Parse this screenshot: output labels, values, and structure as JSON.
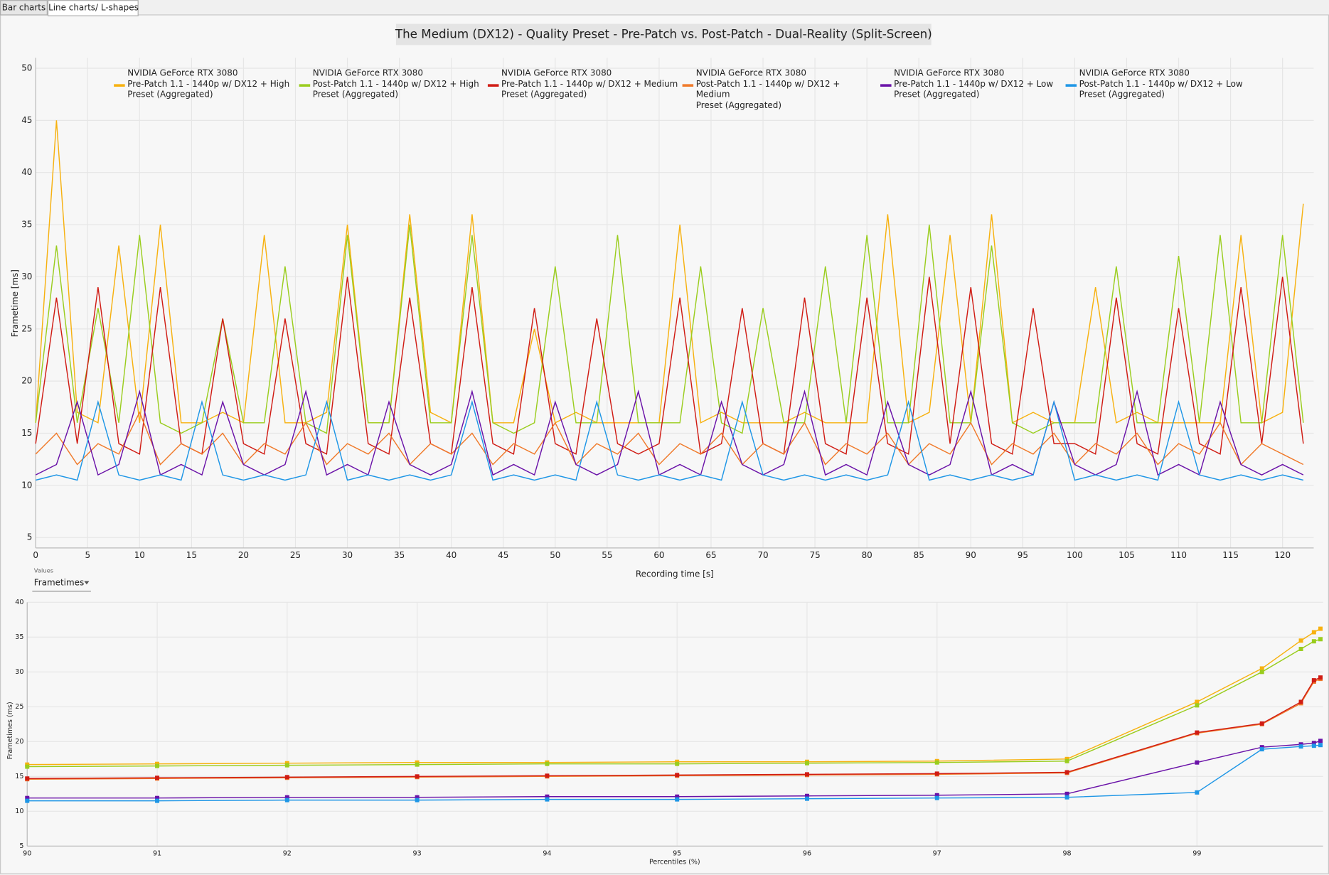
{
  "tabs": [
    "Bar charts",
    "Line charts/ L-shapes"
  ],
  "controls": {
    "label": "Values",
    "selected": "Frametimes"
  },
  "chart_data": [
    {
      "type": "line",
      "title": "The Medium (DX12) - Quality Preset - Pre-Patch vs. Post-Patch - Dual-Reality (Split-Screen)",
      "y_label": "Frametime [ms]",
      "x_label": "Recording time [s]",
      "grid": true,
      "legend": "top",
      "xlim": [
        0,
        123
      ],
      "ylim": [
        4,
        51
      ],
      "xticks": [
        0,
        5,
        10,
        15,
        20,
        25,
        30,
        35,
        40,
        45,
        50,
        55,
        60,
        65,
        70,
        75,
        80,
        85,
        90,
        95,
        100,
        105,
        110,
        115,
        120
      ],
      "yticks": [
        5,
        10,
        15,
        20,
        25,
        30,
        35,
        40,
        45,
        50
      ],
      "x": [
        0,
        2,
        4,
        6,
        8,
        10,
        12,
        14,
        16,
        18,
        20,
        22,
        24,
        26,
        28,
        30,
        32,
        34,
        36,
        38,
        40,
        42,
        44,
        46,
        48,
        50,
        52,
        54,
        56,
        58,
        60,
        62,
        64,
        66,
        68,
        70,
        72,
        74,
        76,
        78,
        80,
        82,
        84,
        86,
        88,
        90,
        92,
        94,
        96,
        98,
        100,
        102,
        104,
        106,
        108,
        110,
        112,
        114,
        116,
        118,
        120,
        122
      ],
      "series": [
        {
          "name": "NVIDIA GeForce RTX 3080\nPre-Patch 1.1 - 1440p w/ DX12 + High\nPreset (Aggregated)",
          "color": "#f7b10f",
          "values": [
            16,
            45,
            17,
            16,
            33,
            16,
            35,
            16,
            16,
            17,
            16,
            34,
            16,
            16,
            17,
            35,
            16,
            16,
            36,
            17,
            16,
            36,
            16,
            16,
            25,
            16,
            17,
            16,
            16,
            16,
            16,
            35,
            16,
            17,
            16,
            16,
            16,
            17,
            16,
            16,
            16,
            36,
            16,
            17,
            34,
            16,
            36,
            16,
            17,
            16,
            16,
            29,
            16,
            17,
            16,
            16,
            16,
            16,
            34,
            16,
            17,
            37
          ]
        },
        {
          "name": "NVIDIA GeForce RTX 3080\nPost-Patch 1.1 - 1440p w/ DX12 + High\nPreset (Aggregated)",
          "color": "#9acd1e",
          "values": [
            16,
            33,
            16,
            27,
            16,
            34,
            16,
            15,
            16,
            26,
            16,
            16,
            31,
            16,
            15,
            34,
            16,
            16,
            35,
            16,
            16,
            34,
            16,
            15,
            16,
            31,
            16,
            16,
            34,
            16,
            16,
            16,
            31,
            16,
            15,
            27,
            16,
            16,
            31,
            16,
            34,
            16,
            16,
            35,
            16,
            16,
            33,
            16,
            15,
            16,
            16,
            16,
            31,
            16,
            16,
            32,
            16,
            34,
            16,
            16,
            34,
            16
          ]
        },
        {
          "name": "NVIDIA GeForce RTX 3080\nPre-Patch 1.1 - 1440p w/ DX12 + Medium\nPreset (Aggregated)",
          "color": "#d01c14",
          "values": [
            14,
            28,
            14,
            29,
            14,
            13,
            29,
            14,
            13,
            26,
            14,
            13,
            26,
            14,
            13,
            30,
            14,
            13,
            28,
            14,
            13,
            29,
            14,
            13,
            27,
            14,
            13,
            26,
            14,
            13,
            14,
            28,
            13,
            14,
            27,
            14,
            13,
            28,
            14,
            13,
            28,
            14,
            13,
            30,
            14,
            29,
            14,
            13,
            27,
            14,
            14,
            13,
            28,
            14,
            13,
            27,
            14,
            13,
            29,
            14,
            30,
            14
          ]
        },
        {
          "name": "NVIDIA GeForce RTX 3080\nPost-Patch 1.1 - 1440p w/ DX12 + Medium\nPreset (Aggregated)",
          "color": "#f07a2a",
          "values": [
            13,
            15,
            12,
            14,
            13,
            17,
            12,
            14,
            13,
            15,
            12,
            14,
            13,
            16,
            12,
            14,
            13,
            15,
            12,
            14,
            13,
            15,
            12,
            14,
            13,
            16,
            12,
            14,
            13,
            15,
            12,
            14,
            13,
            15,
            12,
            14,
            13,
            16,
            12,
            14,
            13,
            15,
            12,
            14,
            13,
            16,
            12,
            14,
            13,
            15,
            12,
            14,
            13,
            15,
            12,
            14,
            13,
            16,
            12,
            14,
            13,
            12
          ]
        },
        {
          "name": "NVIDIA GeForce RTX 3080\nPre-Patch 1.1 - 1440p w/ DX12 + Low\nPreset (Aggregated)",
          "color": "#6a12a8",
          "values": [
            11,
            12,
            18,
            11,
            12,
            19,
            11,
            12,
            11,
            18,
            12,
            11,
            12,
            19,
            11,
            12,
            11,
            18,
            12,
            11,
            12,
            19,
            11,
            12,
            11,
            18,
            12,
            11,
            12,
            19,
            11,
            12,
            11,
            18,
            12,
            11,
            12,
            19,
            11,
            12,
            11,
            18,
            12,
            11,
            12,
            19,
            11,
            12,
            11,
            18,
            12,
            11,
            12,
            19,
            11,
            12,
            11,
            18,
            12,
            11,
            12,
            11
          ]
        },
        {
          "name": "NVIDIA GeForce RTX 3080\nPost-Patch 1.1 - 1440p w/ DX12 + Low\nPreset (Aggregated)",
          "color": "#1e96e6",
          "values": [
            10.5,
            11,
            10.5,
            18,
            11,
            10.5,
            11,
            10.5,
            18,
            11,
            10.5,
            11,
            10.5,
            11,
            18,
            10.5,
            11,
            10.5,
            11,
            10.5,
            11,
            18,
            10.5,
            11,
            10.5,
            11,
            10.5,
            18,
            11,
            10.5,
            11,
            10.5,
            11,
            10.5,
            18,
            11,
            10.5,
            11,
            10.5,
            11,
            10.5,
            11,
            18,
            10.5,
            11,
            10.5,
            11,
            10.5,
            11,
            18,
            10.5,
            11,
            10.5,
            11,
            10.5,
            18,
            11,
            10.5,
            11,
            10.5,
            11,
            10.5
          ]
        }
      ]
    },
    {
      "type": "line",
      "y_label": "Frametimes (ms)",
      "x_label": "Percentiles (%)",
      "grid": true,
      "markers": true,
      "xlim": [
        90,
        99.97
      ],
      "ylim": [
        5,
        40
      ],
      "xticks": [
        90,
        91,
        92,
        93,
        94,
        95,
        96,
        97,
        98,
        99
      ],
      "yticks": [
        5,
        10,
        15,
        20,
        25,
        30,
        35,
        40
      ],
      "x": [
        90,
        91,
        92,
        93,
        94,
        95,
        96,
        97,
        98,
        99,
        99.5,
        99.8,
        99.9,
        99.95
      ],
      "series": [
        {
          "color": "#f7b10f",
          "values": [
            16.7,
            16.8,
            16.9,
            17.0,
            17.0,
            17.1,
            17.1,
            17.2,
            17.5,
            25.7,
            30.5,
            34.5,
            35.7,
            36.2
          ]
        },
        {
          "color": "#9acd1e",
          "values": [
            16.4,
            16.5,
            16.6,
            16.7,
            16.8,
            16.8,
            16.9,
            17.0,
            17.2,
            25.2,
            30.0,
            33.3,
            34.4,
            34.7
          ]
        },
        {
          "color": "#f07a2a",
          "values": [
            14.6,
            14.7,
            14.8,
            14.9,
            15.0,
            15.1,
            15.2,
            15.3,
            15.5,
            21.2,
            22.5,
            25.5,
            28.6,
            29.0
          ]
        },
        {
          "color": "#d01c14",
          "values": [
            14.7,
            14.8,
            14.9,
            15.0,
            15.1,
            15.2,
            15.3,
            15.4,
            15.6,
            21.3,
            22.6,
            25.7,
            28.8,
            29.2
          ]
        },
        {
          "color": "#6a12a8",
          "values": [
            11.9,
            11.9,
            12.0,
            12.0,
            12.1,
            12.1,
            12.2,
            12.3,
            12.5,
            17.0,
            19.2,
            19.6,
            19.8,
            20.1
          ]
        },
        {
          "color": "#1e96e6",
          "values": [
            11.5,
            11.5,
            11.6,
            11.6,
            11.7,
            11.7,
            11.8,
            11.9,
            12.0,
            12.7,
            18.9,
            19.3,
            19.4,
            19.5
          ]
        }
      ]
    }
  ]
}
